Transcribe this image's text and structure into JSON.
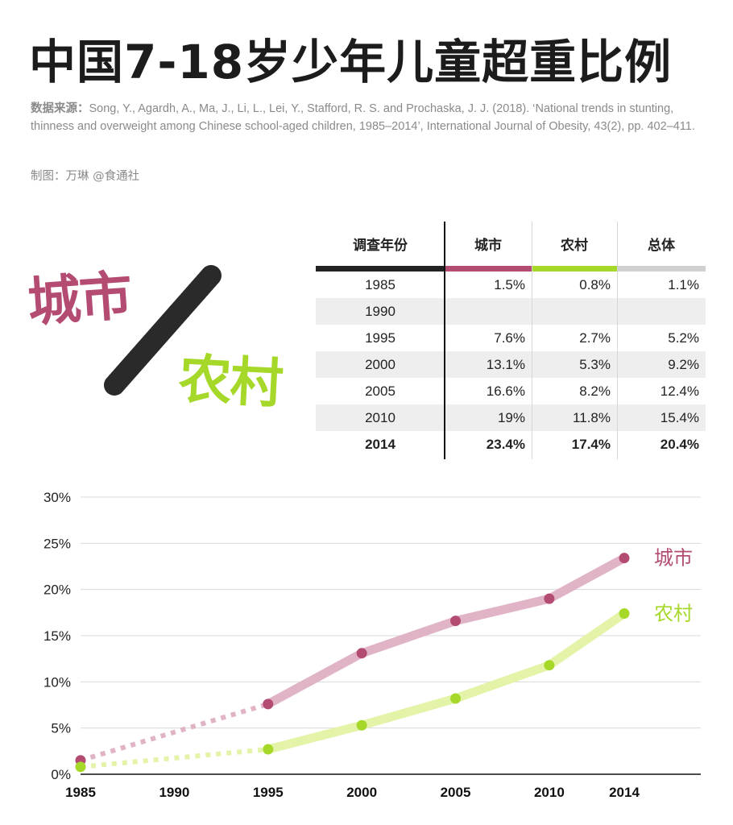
{
  "title": "中国7-18岁少年儿童超重比例",
  "source": {
    "label": "数据来源：",
    "text": "Song, Y., Agardh, A., Ma, J., Li, L., Lei, Y., Stafford, R. S. and Prochaska, J. J. (2018). ‘National trends in stunting, thinness and overweight among Chinese school-aged children, 1985–2014’, International Journal of Obesity, 43(2), pp. 402–411."
  },
  "credit": "制图：万琳 @食通社",
  "decorative": {
    "urban": "城市",
    "rural": "农村"
  },
  "colors": {
    "urban": "#b34b72",
    "urban_line": "#e0b4c6",
    "rural": "#a6d82a",
    "rural_line": "#e3f3a8",
    "total": "#d0d0d0",
    "axis": "#111111"
  },
  "table": {
    "headers": [
      "调查年份",
      "城市",
      "农村",
      "总体"
    ],
    "rows": [
      [
        "1985",
        "1.5%",
        "0.8%",
        "1.1%"
      ],
      [
        "1990",
        "",
        "",
        ""
      ],
      [
        "1995",
        "7.6%",
        "2.7%",
        "5.2%"
      ],
      [
        "2000",
        "13.1%",
        "5.3%",
        "9.2%"
      ],
      [
        "2005",
        "16.6%",
        "8.2%",
        "12.4%"
      ],
      [
        "2010",
        "19%",
        "11.8%",
        "15.4%"
      ],
      [
        "2014",
        "23.4%",
        "17.4%",
        "20.4%"
      ]
    ]
  },
  "chart_data": {
    "type": "line",
    "x": [
      1985,
      1995,
      2000,
      2005,
      2010,
      2014
    ],
    "xticks": [
      "1985",
      "1990",
      "1995",
      "2000",
      "2005",
      "2010",
      "2014"
    ],
    "yticks": [
      "0%",
      "5%",
      "10%",
      "15%",
      "20%",
      "25%",
      "30%"
    ],
    "ylim": [
      0,
      30
    ],
    "grid": true,
    "series": [
      {
        "name": "城市",
        "values": [
          1.5,
          7.6,
          13.1,
          16.6,
          19,
          23.4
        ],
        "color": "#b34b72"
      },
      {
        "name": "农村",
        "values": [
          0.8,
          2.7,
          5.3,
          8.2,
          11.8,
          17.4
        ],
        "color": "#a6d82a"
      }
    ],
    "dotted_segment": [
      1985,
      1995
    ]
  }
}
